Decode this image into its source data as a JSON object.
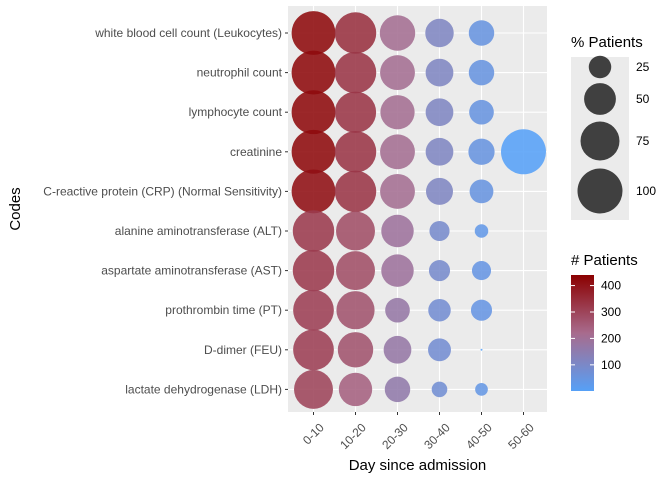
{
  "chart_data": {
    "type": "scatter",
    "subtype": "bubble",
    "title": "",
    "xlabel": "Day since admission",
    "ylabel": "Codes",
    "x_categories": [
      "0-10",
      "10-20",
      "20-30",
      "30-40",
      "40-50",
      "50-60"
    ],
    "y_categories": [
      "white blood cell count (Leukocytes)",
      "neutrophil count",
      "lymphocyte count",
      "creatinine",
      "C-reactive protein (CRP) (Normal Sensitivity)",
      "alanine aminotransferase (ALT)",
      "aspartate aminotransferase (AST)",
      "prothrombin time (PT)",
      "D-dimer (FEU)",
      "lactate dehydrogenase (LDH)"
    ],
    "points": [
      {
        "y": "white blood cell count (Leukocytes)",
        "x": "0-10",
        "pct_patients": 95,
        "n_patients": 420
      },
      {
        "y": "white blood cell count (Leukocytes)",
        "x": "10-20",
        "pct_patients": 85,
        "n_patients": 340
      },
      {
        "y": "white blood cell count (Leukocytes)",
        "x": "20-30",
        "pct_patients": 62,
        "n_patients": 210
      },
      {
        "y": "white blood cell count (Leukocytes)",
        "x": "30-40",
        "pct_patients": 40,
        "n_patients": 110
      },
      {
        "y": "white blood cell count (Leukocytes)",
        "x": "40-50",
        "pct_patients": 32,
        "n_patients": 50
      },
      {
        "y": "neutrophil count",
        "x": "0-10",
        "pct_patients": 95,
        "n_patients": 420
      },
      {
        "y": "neutrophil count",
        "x": "10-20",
        "pct_patients": 85,
        "n_patients": 330
      },
      {
        "y": "neutrophil count",
        "x": "20-30",
        "pct_patients": 60,
        "n_patients": 210
      },
      {
        "y": "neutrophil count",
        "x": "30-40",
        "pct_patients": 38,
        "n_patients": 110
      },
      {
        "y": "neutrophil count",
        "x": "40-50",
        "pct_patients": 32,
        "n_patients": 50
      },
      {
        "y": "lymphocyte count",
        "x": "0-10",
        "pct_patients": 95,
        "n_patients": 420
      },
      {
        "y": "lymphocyte count",
        "x": "10-20",
        "pct_patients": 84,
        "n_patients": 330
      },
      {
        "y": "lymphocyte count",
        "x": "20-30",
        "pct_patients": 58,
        "n_patients": 210
      },
      {
        "y": "lymphocyte count",
        "x": "30-40",
        "pct_patients": 38,
        "n_patients": 110
      },
      {
        "y": "lymphocyte count",
        "x": "40-50",
        "pct_patients": 30,
        "n_patients": 50
      },
      {
        "y": "creatinine",
        "x": "0-10",
        "pct_patients": 95,
        "n_patients": 420
      },
      {
        "y": "creatinine",
        "x": "10-20",
        "pct_patients": 85,
        "n_patients": 330
      },
      {
        "y": "creatinine",
        "x": "20-30",
        "pct_patients": 60,
        "n_patients": 210
      },
      {
        "y": "creatinine",
        "x": "30-40",
        "pct_patients": 38,
        "n_patients": 110
      },
      {
        "y": "creatinine",
        "x": "40-50",
        "pct_patients": 34,
        "n_patients": 50
      },
      {
        "y": "creatinine",
        "x": "50-60",
        "pct_patients": 100,
        "n_patients": 1
      },
      {
        "y": "C-reactive protein (CRP) (Normal Sensitivity)",
        "x": "0-10",
        "pct_patients": 95,
        "n_patients": 410
      },
      {
        "y": "C-reactive protein (CRP) (Normal Sensitivity)",
        "x": "10-20",
        "pct_patients": 85,
        "n_patients": 330
      },
      {
        "y": "C-reactive protein (CRP) (Normal Sensitivity)",
        "x": "20-30",
        "pct_patients": 60,
        "n_patients": 210
      },
      {
        "y": "C-reactive protein (CRP) (Normal Sensitivity)",
        "x": "30-40",
        "pct_patients": 36,
        "n_patients": 110
      },
      {
        "y": "C-reactive protein (CRP) (Normal Sensitivity)",
        "x": "40-50",
        "pct_patients": 28,
        "n_patients": 50
      },
      {
        "y": "alanine aminotransferase (ALT)",
        "x": "0-10",
        "pct_patients": 85,
        "n_patients": 320
      },
      {
        "y": "alanine aminotransferase (ALT)",
        "x": "10-20",
        "pct_patients": 75,
        "n_patients": 280
      },
      {
        "y": "alanine aminotransferase (ALT)",
        "x": "20-30",
        "pct_patients": 52,
        "n_patients": 190
      },
      {
        "y": "alanine aminotransferase (ALT)",
        "x": "30-40",
        "pct_patients": 20,
        "n_patients": 90
      },
      {
        "y": "alanine aminotransferase (ALT)",
        "x": "40-50",
        "pct_patients": 9,
        "n_patients": 35
      },
      {
        "y": "aspartate aminotransferase (AST)",
        "x": "0-10",
        "pct_patients": 85,
        "n_patients": 320
      },
      {
        "y": "aspartate aminotransferase (AST)",
        "x": "10-20",
        "pct_patients": 75,
        "n_patients": 280
      },
      {
        "y": "aspartate aminotransferase (AST)",
        "x": "20-30",
        "pct_patients": 52,
        "n_patients": 190
      },
      {
        "y": "aspartate aminotransferase (AST)",
        "x": "30-40",
        "pct_patients": 22,
        "n_patients": 90
      },
      {
        "y": "aspartate aminotransferase (AST)",
        "x": "40-50",
        "pct_patients": 18,
        "n_patients": 45
      },
      {
        "y": "prothrombin time (PT)",
        "x": "0-10",
        "pct_patients": 82,
        "n_patients": 310
      },
      {
        "y": "prothrombin time (PT)",
        "x": "10-20",
        "pct_patients": 72,
        "n_patients": 270
      },
      {
        "y": "prothrombin time (PT)",
        "x": "20-30",
        "pct_patients": 30,
        "n_patients": 170
      },
      {
        "y": "prothrombin time (PT)",
        "x": "30-40",
        "pct_patients": 25,
        "n_patients": 80
      },
      {
        "y": "prothrombin time (PT)",
        "x": "40-50",
        "pct_patients": 22,
        "n_patients": 45
      },
      {
        "y": "D-dimer (FEU)",
        "x": "0-10",
        "pct_patients": 82,
        "n_patients": 310
      },
      {
        "y": "D-dimer (FEU)",
        "x": "10-20",
        "pct_patients": 62,
        "n_patients": 270
      },
      {
        "y": "D-dimer (FEU)",
        "x": "20-30",
        "pct_patients": 38,
        "n_patients": 170
      },
      {
        "y": "D-dimer (FEU)",
        "x": "30-40",
        "pct_patients": 26,
        "n_patients": 80
      },
      {
        "y": "D-dimer (FEU)",
        "x": "40-50",
        "pct_patients": 0.2,
        "n_patients": 2
      },
      {
        "y": "lactate dehydrogenase (LDH)",
        "x": "0-10",
        "pct_patients": 75,
        "n_patients": 300
      },
      {
        "y": "lactate dehydrogenase (LDH)",
        "x": "10-20",
        "pct_patients": 55,
        "n_patients": 240
      },
      {
        "y": "lactate dehydrogenase (LDH)",
        "x": "20-30",
        "pct_patients": 32,
        "n_patients": 160
      },
      {
        "y": "lactate dehydrogenase (LDH)",
        "x": "30-40",
        "pct_patients": 12,
        "n_patients": 75
      },
      {
        "y": "lactate dehydrogenase (LDH)",
        "x": "40-50",
        "pct_patients": 8,
        "n_patients": 40
      }
    ],
    "size_legend": {
      "title": "% Patients",
      "breaks": [
        25,
        50,
        75,
        100
      ],
      "labels": [
        "25",
        "50",
        "75",
        "100"
      ],
      "fill": "#404040"
    },
    "color_legend": {
      "title": "# Patients",
      "range": [
        1,
        440
      ],
      "breaks": [
        100,
        200,
        300,
        400
      ],
      "labels": [
        "100",
        "200",
        "300",
        "400"
      ],
      "low_color": "#56A0F7",
      "mid_color": "#A86B8D",
      "high_color": "#8B0000"
    },
    "panel_background": "#EBEBEB",
    "grid": true,
    "legend_position": "right"
  }
}
